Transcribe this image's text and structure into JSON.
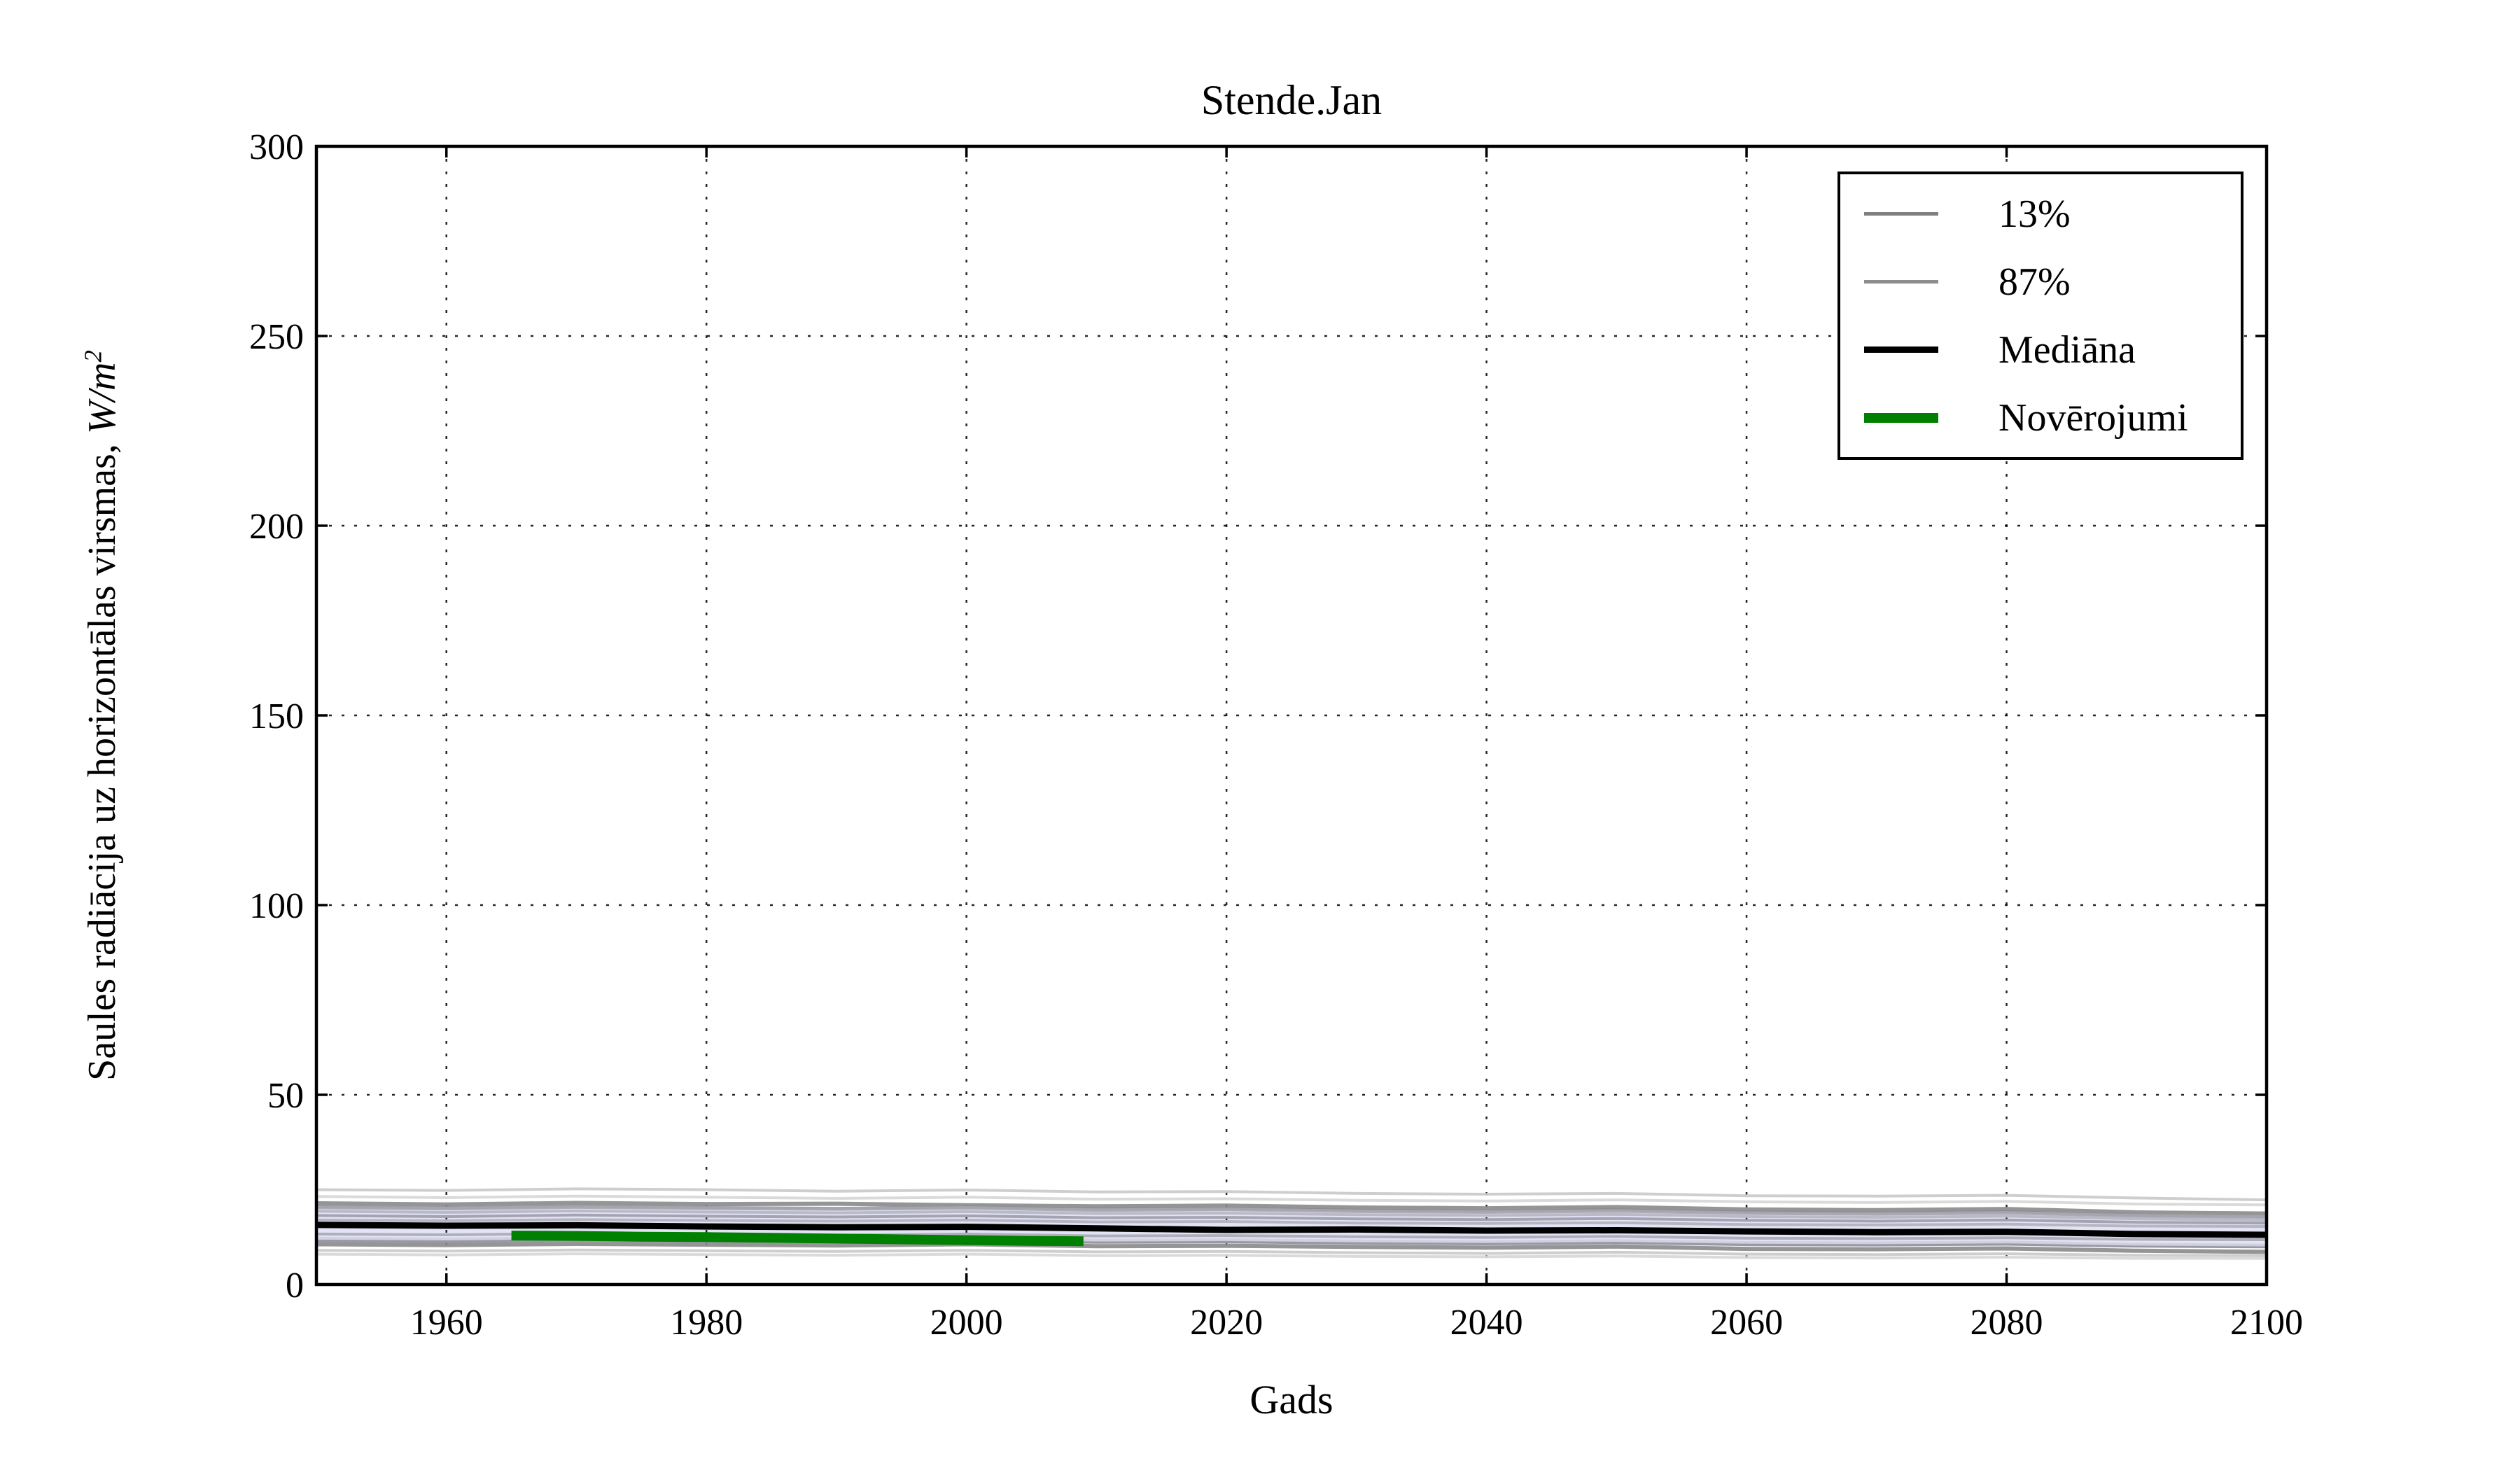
{
  "title": "Stende.Jan",
  "labels": {
    "ylabel_text": "Saules radiācija uz horizontālas virsmas, ",
    "ylabel_math": "W/m",
    "ylabel_sup": "2"
  },
  "chart_data": {
    "type": "line",
    "title": "Stende.Jan",
    "xlabel": "Gads",
    "ylabel": "Saules radiācija uz horizontālas virsmas, W/m^2",
    "xlim": [
      1950,
      2100
    ],
    "ylim": [
      0,
      300
    ],
    "xticks": [
      1960,
      1980,
      2000,
      2020,
      2040,
      2060,
      2080,
      2100
    ],
    "yticks": [
      0,
      50,
      100,
      150,
      200,
      250,
      300
    ],
    "grid": "dotted",
    "grid_color": "#000000",
    "legend": {
      "position": "upper right",
      "items": [
        {
          "label": "13%",
          "color": "#808080",
          "width": 5
        },
        {
          "label": "87%",
          "color": "#8d8d8d",
          "width": 5
        },
        {
          "label": "Mediāna",
          "color": "#000000",
          "width": 9
        },
        {
          "label": "Novērojumi",
          "color": "#008000",
          "width": 14
        }
      ]
    },
    "x_years": [
      1950,
      1960,
      1970,
      1980,
      1990,
      2000,
      2010,
      2020,
      2030,
      2040,
      2050,
      2060,
      2070,
      2080,
      2090,
      2100
    ],
    "band": {
      "name": "13-87-percentile-band",
      "fill": "#e1e1f5",
      "edge_color": "#9898a8",
      "upper": [
        20.5,
        20.2,
        20.6,
        20.3,
        20.1,
        20.4,
        19.9,
        20.0,
        19.6,
        19.4,
        19.7,
        19.1,
        18.9,
        19.2,
        18.2,
        17.9
      ],
      "lower": [
        11.5,
        11.3,
        11.6,
        11.4,
        11.2,
        11.5,
        11.1,
        11.2,
        10.9,
        10.7,
        11.0,
        10.5,
        10.4,
        10.6,
        10.1,
        9.9
      ]
    },
    "ensemble_series": [
      {
        "name": "ensemble-1",
        "color": "#c9c9c9",
        "width": 4,
        "y": [
          25.0,
          24.8,
          25.2,
          25.0,
          24.6,
          24.9,
          24.4,
          24.5,
          24.0,
          23.8,
          24.0,
          23.4,
          23.3,
          23.5,
          22.8,
          22.3
        ]
      },
      {
        "name": "ensemble-2",
        "color": "#d6d6d6",
        "width": 4,
        "y": [
          23.2,
          22.9,
          23.3,
          23.0,
          22.7,
          23.0,
          22.5,
          22.6,
          22.2,
          22.0,
          22.3,
          21.8,
          21.6,
          21.9,
          21.2,
          21.0
        ]
      },
      {
        "name": "ensemble-3",
        "color": "#8a8a8a",
        "width": 6,
        "y": [
          21.4,
          21.1,
          21.5,
          21.2,
          21.3,
          20.9,
          20.6,
          20.8,
          20.3,
          20.1,
          20.4,
          19.8,
          19.6,
          19.9,
          19.0,
          18.7
        ]
      },
      {
        "name": "ensemble-4",
        "color": "#a6a6b0",
        "width": 5,
        "y": [
          20.3,
          20.0,
          20.4,
          20.1,
          19.9,
          20.2,
          19.6,
          19.8,
          19.3,
          19.1,
          19.4,
          18.8,
          18.6,
          18.9,
          18.1,
          17.8
        ]
      },
      {
        "name": "ensemble-5",
        "color": "#b5b5c2",
        "width": 4,
        "y": [
          19.3,
          19.0,
          19.4,
          19.1,
          18.9,
          19.2,
          18.7,
          18.8,
          18.4,
          18.2,
          18.5,
          17.9,
          17.7,
          18.0,
          17.3,
          17.0
        ]
      },
      {
        "name": "ensemble-6",
        "color": "#9b9bab",
        "width": 4,
        "y": [
          18.2,
          17.9,
          18.3,
          18.0,
          17.8,
          18.1,
          17.6,
          17.7,
          17.3,
          17.1,
          17.4,
          16.9,
          16.7,
          17.0,
          16.4,
          16.2
        ]
      },
      {
        "name": "ensemble-7",
        "color": "#b0b0bd",
        "width": 4,
        "y": [
          17.0,
          16.8,
          17.1,
          16.9,
          16.7,
          17.0,
          16.5,
          16.6,
          16.2,
          16.1,
          16.3,
          15.8,
          15.7,
          15.9,
          15.4,
          15.3
        ]
      },
      {
        "name": "ensemble-8",
        "color": "#a8a8b5",
        "width": 4,
        "y": [
          13.3,
          13.1,
          13.4,
          13.2,
          13.0,
          13.3,
          12.8,
          12.9,
          12.6,
          12.4,
          12.7,
          12.2,
          12.1,
          12.3,
          11.9,
          11.8
        ]
      },
      {
        "name": "ensemble-9",
        "color": "#cfcfdb",
        "width": 4,
        "y": [
          12.2,
          12.0,
          12.3,
          12.1,
          11.9,
          12.2,
          11.7,
          11.8,
          11.5,
          11.3,
          11.6,
          11.1,
          11.0,
          11.2,
          10.6,
          10.4
        ]
      },
      {
        "name": "ensemble-10",
        "color": "#8a8a8a",
        "width": 6,
        "y": [
          10.6,
          10.4,
          10.7,
          10.5,
          10.3,
          10.6,
          10.1,
          10.2,
          9.9,
          9.7,
          10.0,
          9.4,
          9.3,
          9.5,
          8.9,
          8.6
        ]
      },
      {
        "name": "ensemble-11",
        "color": "#c9c9c9",
        "width": 4,
        "y": [
          9.0,
          8.8,
          9.1,
          8.9,
          8.7,
          9.0,
          8.6,
          8.7,
          8.4,
          8.2,
          8.5,
          8.0,
          7.9,
          8.1,
          7.7,
          7.6
        ]
      },
      {
        "name": "ensemble-12",
        "color": "#d6d6d6",
        "width": 4,
        "y": [
          8.0,
          7.8,
          8.1,
          7.9,
          7.7,
          8.0,
          7.6,
          7.7,
          7.4,
          7.3,
          7.5,
          7.1,
          7.0,
          7.2,
          6.9,
          6.9
        ]
      }
    ],
    "median_series": {
      "name": "Mediāna",
      "color": "#000000",
      "width": 9,
      "y": [
        15.7,
        15.5,
        15.6,
        15.3,
        15.1,
        15.2,
        14.8,
        14.4,
        14.5,
        14.2,
        14.3,
        14.0,
        13.8,
        13.9,
        13.3,
        13.1
      ]
    },
    "observation_series": {
      "name": "Novērojumi",
      "color": "#008000",
      "width": 14,
      "x": [
        1965,
        1970,
        1975,
        1980,
        1985,
        1990,
        1995,
        2000,
        2005,
        2009
      ],
      "y": [
        12.9,
        12.8,
        12.6,
        12.5,
        12.3,
        12.1,
        11.9,
        11.7,
        11.5,
        11.4
      ]
    }
  }
}
